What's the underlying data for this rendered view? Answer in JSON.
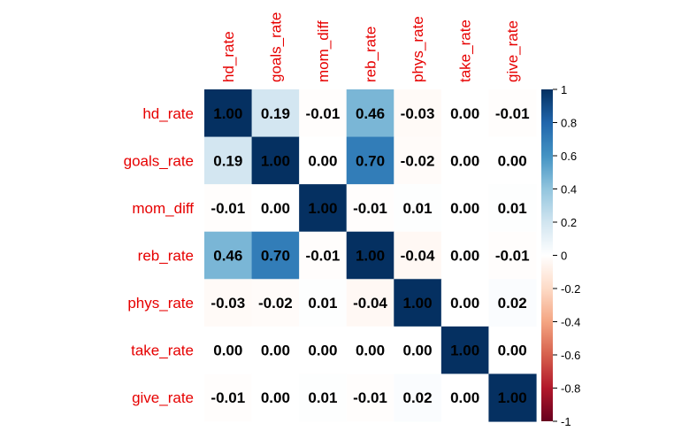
{
  "chart_data": {
    "type": "heatmap",
    "variables": [
      "hd_rate",
      "goals_rate",
      "mom_diff",
      "reb_rate",
      "phys_rate",
      "take_rate",
      "give_rate"
    ],
    "matrix": [
      [
        1.0,
        0.19,
        -0.01,
        0.46,
        -0.03,
        0.0,
        -0.01
      ],
      [
        0.19,
        1.0,
        0.0,
        0.7,
        -0.02,
        0.0,
        0.0
      ],
      [
        -0.01,
        0.0,
        1.0,
        -0.01,
        0.01,
        0.0,
        0.01
      ],
      [
        0.46,
        0.7,
        -0.01,
        1.0,
        -0.04,
        0.0,
        -0.01
      ],
      [
        -0.03,
        -0.02,
        0.01,
        -0.04,
        1.0,
        0.0,
        0.02
      ],
      [
        0.0,
        0.0,
        0.0,
        0.0,
        0.0,
        1.0,
        0.0
      ],
      [
        -0.01,
        0.0,
        0.01,
        -0.01,
        0.02,
        0.0,
        1.0
      ]
    ],
    "value_range": [
      -1,
      1
    ],
    "colorbar_ticks": [
      "1",
      "0.8",
      "0.6",
      "0.4",
      "0.2",
      "0",
      "-0.2",
      "-0.4",
      "-0.6",
      "-0.8",
      "-1"
    ],
    "colorscale": [
      "#67001f",
      "#b2182b",
      "#d6604d",
      "#f4a582",
      "#fddbc7",
      "#ffffff",
      "#d1e5f0",
      "#92c5de",
      "#4393c3",
      "#2166ac",
      "#053061"
    ],
    "label_color": "#e60000",
    "grid": false,
    "legend": "right"
  }
}
